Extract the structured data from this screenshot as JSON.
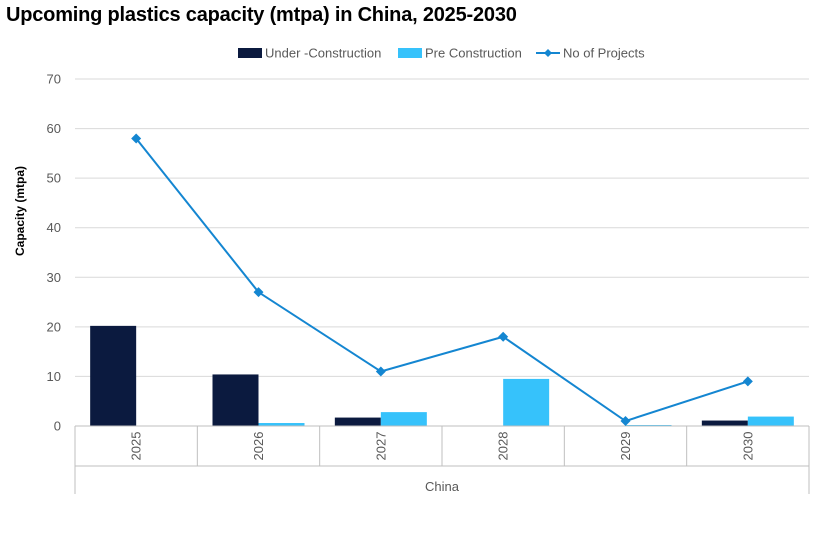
{
  "chart_data": {
    "type": "bar",
    "title": "Upcoming plastics capacity (mtpa) in China, 2025-2030",
    "ylabel": "Capacity (mtpa)",
    "xlabel": "China",
    "categories": [
      "2025",
      "2026",
      "2027",
      "2028",
      "2029",
      "2030"
    ],
    "ylim": [
      0,
      70
    ],
    "yticks": [
      0,
      10,
      20,
      30,
      40,
      50,
      60,
      70
    ],
    "grid": true,
    "legend_position": "top-center",
    "series": [
      {
        "name": "Under -Construction",
        "kind": "bar",
        "color": "#0b1a3f",
        "values": [
          20.2,
          10.4,
          1.7,
          0,
          0,
          1.1
        ]
      },
      {
        "name": "Pre Construction",
        "kind": "bar",
        "color": "#36c2fb",
        "values": [
          0,
          0.6,
          2.8,
          9.5,
          0.2,
          1.9
        ]
      },
      {
        "name": "No of Projects",
        "kind": "line",
        "color": "#1486d1",
        "marker": "diamond",
        "values": [
          58,
          27,
          11,
          18,
          1,
          9
        ]
      }
    ]
  }
}
